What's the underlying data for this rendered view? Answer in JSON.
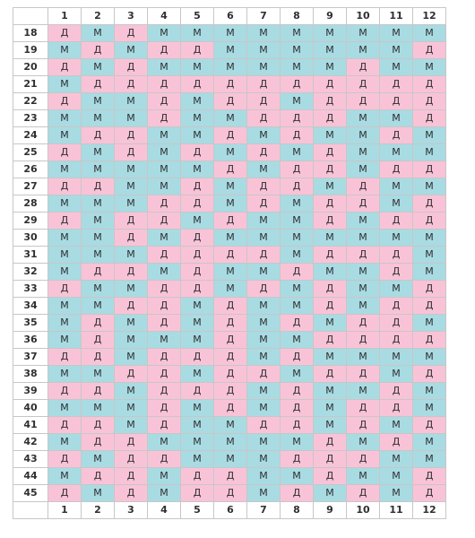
{
  "months": [
    "1",
    "2",
    "3",
    "4",
    "5",
    "6",
    "7",
    "8",
    "9",
    "10",
    "11",
    "12"
  ],
  "colors": {
    "М": "#a9dbe3",
    "Д": "#f9c3d7"
  },
  "rows": [
    {
      "age": "18",
      "cells": [
        "Д",
        "М",
        "Д",
        "М",
        "М",
        "М",
        "М",
        "М",
        "М",
        "М",
        "М",
        "М"
      ]
    },
    {
      "age": "19",
      "cells": [
        "М",
        "Д",
        "М",
        "Д",
        "Д",
        "М",
        "М",
        "М",
        "М",
        "М",
        "М",
        "Д"
      ]
    },
    {
      "age": "20",
      "cells": [
        "Д",
        "М",
        "Д",
        "М",
        "М",
        "М",
        "М",
        "М",
        "М",
        "Д",
        "М",
        "М"
      ]
    },
    {
      "age": "21",
      "cells": [
        "М",
        "Д",
        "Д",
        "Д",
        "Д",
        "Д",
        "Д",
        "Д",
        "Д",
        "Д",
        "Д",
        "Д"
      ]
    },
    {
      "age": "22",
      "cells": [
        "Д",
        "М",
        "М",
        "Д",
        "М",
        "Д",
        "Д",
        "М",
        "Д",
        "Д",
        "Д",
        "Д"
      ]
    },
    {
      "age": "23",
      "cells": [
        "М",
        "М",
        "М",
        "Д",
        "М",
        "М",
        "Д",
        "Д",
        "Д",
        "М",
        "М",
        "Д"
      ]
    },
    {
      "age": "24",
      "cells": [
        "М",
        "Д",
        "Д",
        "М",
        "М",
        "Д",
        "М",
        "Д",
        "М",
        "М",
        "Д",
        "М"
      ]
    },
    {
      "age": "25",
      "cells": [
        "Д",
        "М",
        "Д",
        "М",
        "Д",
        "М",
        "Д",
        "М",
        "Д",
        "М",
        "М",
        "М"
      ]
    },
    {
      "age": "26",
      "cells": [
        "М",
        "М",
        "М",
        "М",
        "М",
        "Д",
        "М",
        "Д",
        "Д",
        "М",
        "Д",
        "Д"
      ]
    },
    {
      "age": "27",
      "cells": [
        "Д",
        "Д",
        "М",
        "М",
        "Д",
        "М",
        "Д",
        "Д",
        "М",
        "Д",
        "М",
        "М"
      ]
    },
    {
      "age": "28",
      "cells": [
        "М",
        "М",
        "М",
        "Д",
        "Д",
        "М",
        "Д",
        "М",
        "Д",
        "Д",
        "М",
        "Д"
      ]
    },
    {
      "age": "29",
      "cells": [
        "Д",
        "М",
        "Д",
        "Д",
        "М",
        "Д",
        "М",
        "М",
        "Д",
        "М",
        "Д",
        "Д"
      ]
    },
    {
      "age": "30",
      "cells": [
        "М",
        "М",
        "Д",
        "М",
        "Д",
        "М",
        "М",
        "М",
        "М",
        "М",
        "М",
        "М"
      ]
    },
    {
      "age": "31",
      "cells": [
        "М",
        "М",
        "М",
        "Д",
        "Д",
        "Д",
        "Д",
        "М",
        "Д",
        "Д",
        "Д",
        "М"
      ]
    },
    {
      "age": "32",
      "cells": [
        "М",
        "Д",
        "Д",
        "М",
        "Д",
        "М",
        "М",
        "Д",
        "М",
        "М",
        "Д",
        "М"
      ]
    },
    {
      "age": "33",
      "cells": [
        "Д",
        "М",
        "М",
        "Д",
        "Д",
        "М",
        "Д",
        "М",
        "Д",
        "М",
        "М",
        "Д"
      ]
    },
    {
      "age": "34",
      "cells": [
        "М",
        "М",
        "Д",
        "Д",
        "М",
        "Д",
        "М",
        "М",
        "Д",
        "М",
        "Д",
        "Д"
      ]
    },
    {
      "age": "35",
      "cells": [
        "М",
        "Д",
        "М",
        "Д",
        "М",
        "Д",
        "М",
        "Д",
        "М",
        "Д",
        "Д",
        "М"
      ]
    },
    {
      "age": "36",
      "cells": [
        "М",
        "Д",
        "М",
        "М",
        "М",
        "Д",
        "М",
        "М",
        "Д",
        "Д",
        "Д",
        "Д"
      ]
    },
    {
      "age": "37",
      "cells": [
        "Д",
        "Д",
        "М",
        "Д",
        "Д",
        "Д",
        "М",
        "Д",
        "М",
        "М",
        "М",
        "М"
      ]
    },
    {
      "age": "38",
      "cells": [
        "М",
        "М",
        "Д",
        "Д",
        "М",
        "Д",
        "Д",
        "М",
        "Д",
        "Д",
        "М",
        "Д"
      ]
    },
    {
      "age": "39",
      "cells": [
        "Д",
        "Д",
        "М",
        "Д",
        "Д",
        "Д",
        "М",
        "Д",
        "М",
        "М",
        "Д",
        "М"
      ]
    },
    {
      "age": "40",
      "cells": [
        "М",
        "М",
        "М",
        "Д",
        "М",
        "Д",
        "М",
        "Д",
        "М",
        "Д",
        "Д",
        "М"
      ]
    },
    {
      "age": "41",
      "cells": [
        "Д",
        "Д",
        "М",
        "Д",
        "М",
        "М",
        "Д",
        "Д",
        "М",
        "Д",
        "М",
        "Д"
      ]
    },
    {
      "age": "42",
      "cells": [
        "М",
        "Д",
        "Д",
        "М",
        "М",
        "М",
        "М",
        "М",
        "Д",
        "М",
        "Д",
        "М"
      ]
    },
    {
      "age": "43",
      "cells": [
        "Д",
        "М",
        "Д",
        "Д",
        "М",
        "М",
        "М",
        "Д",
        "Д",
        "Д",
        "М",
        "М"
      ]
    },
    {
      "age": "44",
      "cells": [
        "М",
        "Д",
        "Д",
        "М",
        "Д",
        "Д",
        "М",
        "М",
        "Д",
        "М",
        "М",
        "Д"
      ]
    },
    {
      "age": "45",
      "cells": [
        "Д",
        "М",
        "Д",
        "М",
        "Д",
        "Д",
        "М",
        "Д",
        "М",
        "Д",
        "М",
        "Д"
      ]
    }
  ]
}
